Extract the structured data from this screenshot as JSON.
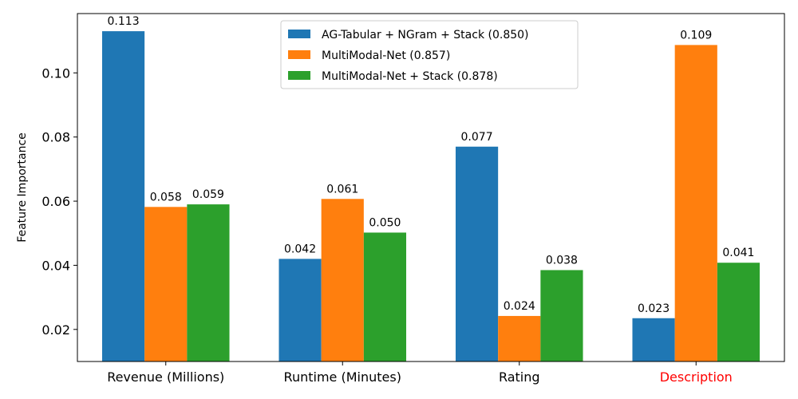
{
  "chart_data": {
    "type": "bar",
    "title": "",
    "xlabel": "",
    "ylabel": "Feature Importance",
    "categories": [
      "Revenue (Millions)",
      "Runtime (Minutes)",
      "Rating",
      "Description"
    ],
    "category_colors": [
      "#000000",
      "#000000",
      "#000000",
      "#ff0000"
    ],
    "series": [
      {
        "name": "AG-Tabular + NGram + Stack (0.850)",
        "color": "#1f77b4",
        "values": [
          0.113,
          0.042,
          0.077,
          0.0235
        ],
        "labels": [
          "0.113",
          "0.042",
          "0.077",
          "0.023"
        ]
      },
      {
        "name": "MultiModal-Net (0.857)",
        "color": "#ff7f0e",
        "values": [
          0.0582,
          0.0607,
          0.0242,
          0.1087
        ],
        "labels": [
          "0.058",
          "0.061",
          "0.024",
          "0.109"
        ]
      },
      {
        "name": "MultiModal-Net + Stack (0.878)",
        "color": "#2ca02c",
        "values": [
          0.059,
          0.0502,
          0.0385,
          0.0408
        ],
        "labels": [
          "0.059",
          "0.050",
          "0.038",
          "0.041"
        ]
      }
    ],
    "ylim": [
      0.01,
      0.1185
    ],
    "yticks": [
      0.02,
      0.04,
      0.06,
      0.08,
      0.1
    ],
    "ytick_labels": [
      "0.02",
      "0.04",
      "0.06",
      "0.08",
      "0.10"
    ],
    "legend_position": "top-center",
    "grid": false
  }
}
